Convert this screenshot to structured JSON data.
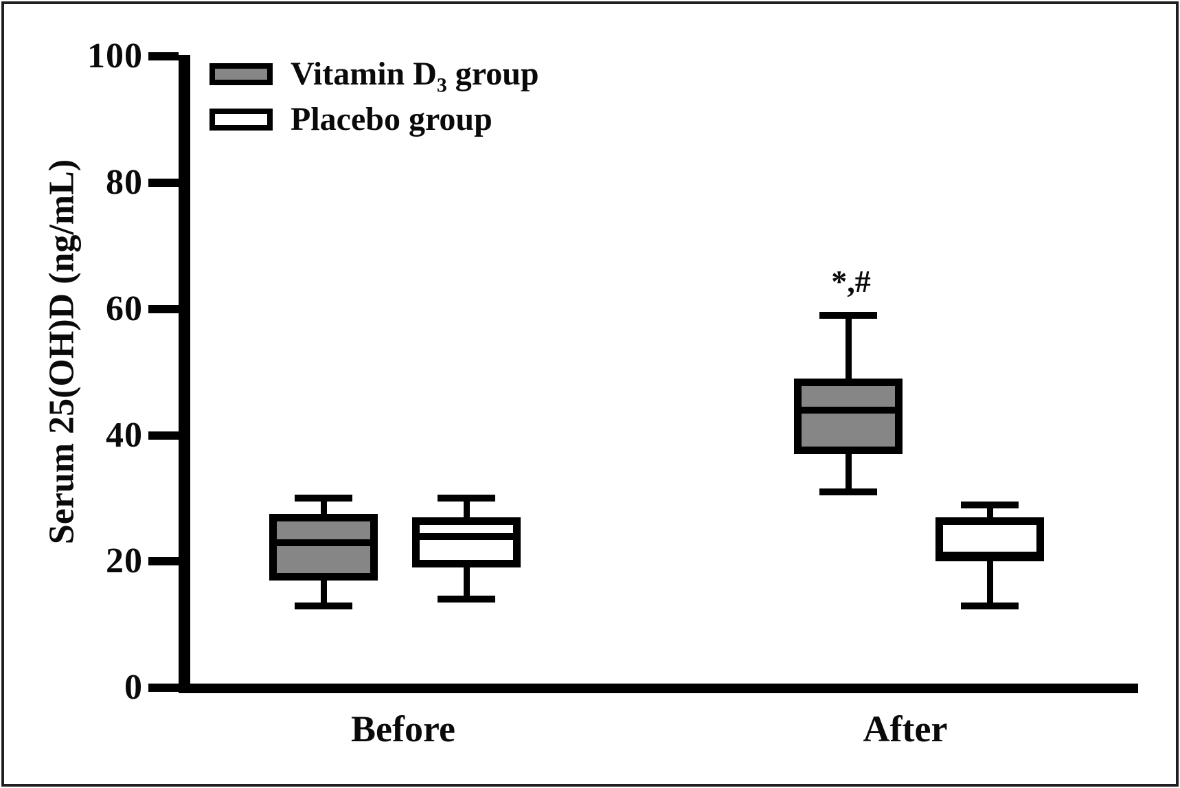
{
  "figure": {
    "background": "#ffffff",
    "frame_color": "#1f1f1f",
    "ink_color": "#000000"
  },
  "legend": {
    "items": [
      {
        "pre": "Vitamin D",
        "sub": "3",
        "post": " group",
        "fill": "#868686"
      },
      {
        "pre": "Placebo group",
        "sub": "",
        "post": "",
        "fill": "#ffffff"
      }
    ]
  },
  "chart_data": {
    "type": "boxplot",
    "title": "",
    "xlabel": "",
    "ylabel": "Serum 25(OH)D (ng/mL)",
    "ylim": [
      0,
      100
    ],
    "yticks": [
      0,
      20,
      40,
      60,
      80,
      100
    ],
    "categories": [
      "Before",
      "After"
    ],
    "legend_position": "top-left",
    "grid": false,
    "series": [
      {
        "name": "Vitamin D3 group",
        "fill": "#868686",
        "boxes": [
          {
            "category": "Before",
            "whisker_low": 13,
            "q1": 17,
            "median": 23,
            "q3": 27.5,
            "whisker_high": 30,
            "annotation": ""
          },
          {
            "category": "After",
            "whisker_low": 31,
            "q1": 37,
            "median": 44,
            "q3": 49,
            "whisker_high": 59,
            "annotation": "*,#"
          }
        ]
      },
      {
        "name": "Placebo group",
        "fill": "#ffffff",
        "boxes": [
          {
            "category": "Before",
            "whisker_low": 14,
            "q1": 19,
            "median": 24,
            "q3": 27,
            "whisker_high": 30,
            "annotation": ""
          },
          {
            "category": "After",
            "whisker_low": 13,
            "q1": 20,
            "median": 21,
            "q3": 27,
            "whisker_high": 29,
            "annotation": ""
          }
        ]
      }
    ]
  }
}
